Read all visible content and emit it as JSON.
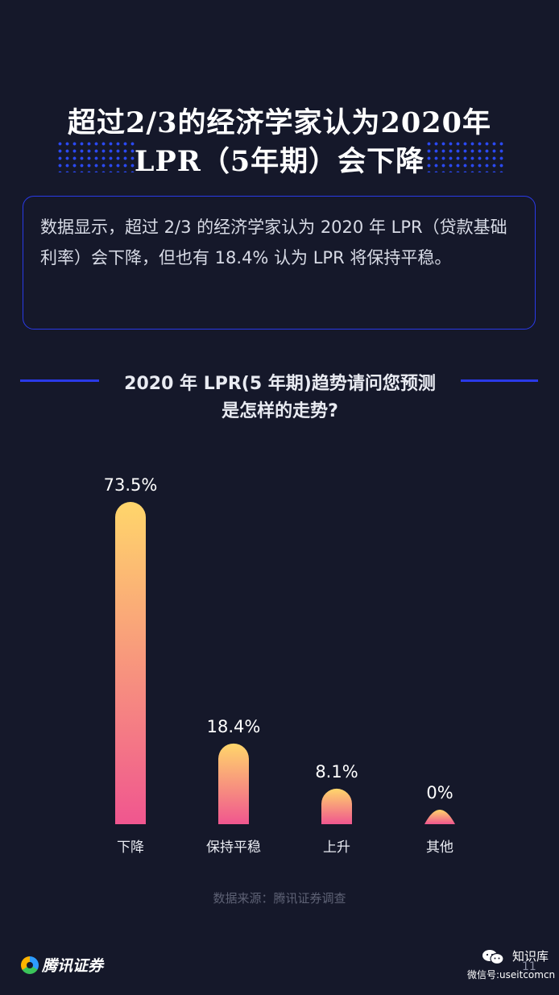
{
  "header": {
    "title_line1": "超过2/3的经济学家认为2020年",
    "title_line2": "LPR（5年期）会下降"
  },
  "summary": {
    "text": "数据显示，超过 2/3 的经济学家认为 2020 年 LPR（贷款基础利率）会下降，但也有 18.4% 认为 LPR 将保持平稳。"
  },
  "chart_data": {
    "type": "bar",
    "title": "2020 年 LPR(5 年期)趋势请问您预测是怎样的走势?",
    "title_line1": "2020 年 LPR(5 年期)趋势请问您预测",
    "title_line2": "是怎样的走势?",
    "categories": [
      "下降",
      "保持平稳",
      "上升",
      "其他"
    ],
    "values": [
      73.5,
      18.4,
      8.1,
      0
    ],
    "value_labels": [
      "73.5%",
      "18.4%",
      "8.1%",
      "0%"
    ],
    "unit": "%",
    "ylim": [
      0,
      73.5
    ],
    "grid": false,
    "legend": "none",
    "colors": {
      "bar_top": "#ffd66b",
      "bar_bottom": "#f0568f"
    }
  },
  "footer": {
    "source": "数据来源：腾讯证券调查",
    "logo_text": "腾讯证券",
    "watermark_title": "知识库",
    "watermark_id": "微信号:useitcomcn",
    "page_number": "11"
  },
  "colors": {
    "background": "#15182a",
    "accent_blue": "#2a3ae8"
  }
}
